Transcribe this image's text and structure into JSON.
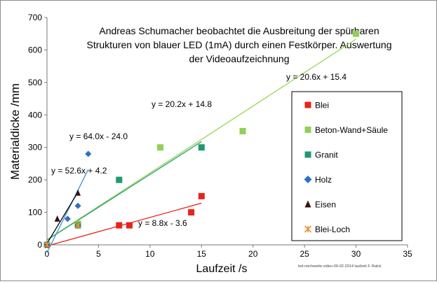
{
  "chart_data": {
    "type": "scatter",
    "title_lines": [
      "Andreas Schumacher beobachtet die Ausbreitung der spürbaren",
      "Strukturen von blauer LED (1mA) durch einen Festkörper. Auswertung",
      "der Videoaufzeichnung"
    ],
    "xlabel": "Laufzeit /s",
    "ylabel": "Materialdicke /mm",
    "xlim": [
      0,
      35
    ],
    "ylim": [
      0,
      700
    ],
    "xticks": [
      0,
      5,
      10,
      15,
      20,
      25,
      30,
      35
    ],
    "yticks": [
      0,
      100,
      200,
      300,
      400,
      500,
      600,
      700
    ],
    "grid": false,
    "legend_position": "right",
    "footnote": "led-reichweite-video-09-02-2014 laufzeit   F. Balck",
    "series": [
      {
        "name": "Blei",
        "marker": "square",
        "color": "#e8231b",
        "points": [
          [
            0,
            0
          ],
          [
            7,
            60
          ],
          [
            8,
            60
          ],
          [
            14,
            100
          ],
          [
            15,
            150
          ]
        ],
        "trendline": {
          "label": "y = 8.8x - 3.6",
          "slope": 8.8,
          "intercept": -3.6,
          "x_range": [
            0,
            15
          ]
        }
      },
      {
        "name": "Beton-Wand+Säule",
        "marker": "square",
        "color": "#8fd05a",
        "points": [
          [
            0,
            0
          ],
          [
            3,
            65
          ],
          [
            11,
            300
          ],
          [
            19,
            350
          ],
          [
            30,
            650
          ]
        ],
        "trendline": {
          "label": "y = 20.6x + 15.4",
          "slope": 20.6,
          "intercept": 15.4,
          "x_range": [
            0,
            30
          ]
        }
      },
      {
        "name": "Granit",
        "marker": "square",
        "color": "#1f9a6b",
        "points": [
          [
            0,
            0
          ],
          [
            3,
            60
          ],
          [
            7,
            200
          ],
          [
            15,
            300
          ]
        ],
        "trendline": {
          "label": "y = 20.2x + 14.8",
          "slope": 20.2,
          "intercept": 14.8,
          "x_range": [
            0,
            15
          ]
        }
      },
      {
        "name": "Holz",
        "marker": "diamond",
        "color": "#2e6fc0",
        "points": [
          [
            0,
            0
          ],
          [
            2,
            80
          ],
          [
            3,
            120
          ],
          [
            4,
            280
          ]
        ],
        "trendline": {
          "label": "y = 64.0x - 24.0",
          "slope": 64.0,
          "intercept": -24.0,
          "x_range": [
            0,
            4
          ]
        }
      },
      {
        "name": "Eisen",
        "marker": "triangle",
        "color": "#3a1212",
        "points": [
          [
            0,
            0
          ],
          [
            1,
            80
          ],
          [
            3,
            160
          ]
        ],
        "trendline": {
          "label": "y = 52.6x + 4.2",
          "slope": 52.6,
          "intercept": 4.2,
          "x_range": [
            0,
            3
          ]
        }
      },
      {
        "name": "Blei-Loch",
        "marker": "star",
        "color": "#f09030",
        "points": [
          [
            0,
            0
          ],
          [
            3,
            60
          ]
        ],
        "trendline": null
      }
    ],
    "trendline_colors": {
      "Blei": "#e8231b",
      "Beton-Wand+Säule": "#9ad85a",
      "Granit": "#2aa070",
      "Holz": "#3a8fd8",
      "Eisen": "#000000"
    }
  }
}
